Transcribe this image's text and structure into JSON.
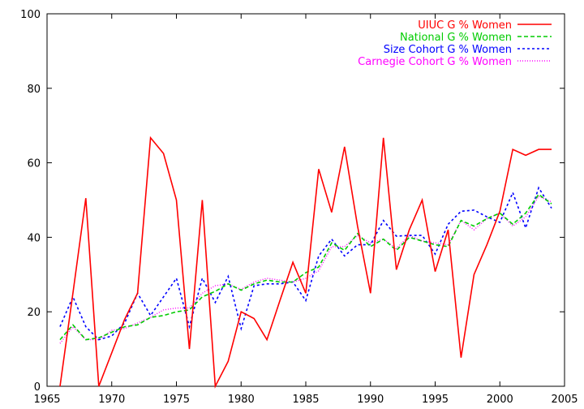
{
  "chart_data": {
    "type": "line",
    "title": "",
    "xlabel": "",
    "ylabel": "",
    "xlim": [
      1965,
      2005
    ],
    "ylim": [
      0,
      100
    ],
    "xticks": [
      1965,
      1970,
      1975,
      1980,
      1985,
      1990,
      1995,
      2000,
      2005
    ],
    "yticks": [
      0,
      20,
      40,
      60,
      80,
      100
    ],
    "grid": false,
    "legend_position": "top-right",
    "x": [
      1966,
      1967,
      1968,
      1969,
      1970,
      1971,
      1972,
      1973,
      1974,
      1975,
      1976,
      1977,
      1978,
      1979,
      1980,
      1981,
      1982,
      1983,
      1984,
      1985,
      1986,
      1987,
      1988,
      1989,
      1990,
      1991,
      1992,
      1993,
      1994,
      1995,
      1996,
      1997,
      1998,
      1999,
      2000,
      2001,
      2002,
      2003,
      2004
    ],
    "series": [
      {
        "name": "UIUC G % Women",
        "color": "#ff0000",
        "dash": "",
        "values": [
          0,
          25,
          50.5,
          0,
          9,
          18,
          25,
          66.7,
          62.5,
          50,
          10,
          50,
          0,
          6.7,
          20,
          18.2,
          12.5,
          23,
          33.3,
          25,
          58.3,
          46.7,
          64.3,
          43,
          25,
          66.7,
          31.3,
          42,
          50,
          30.8,
          42,
          7.7,
          30,
          38,
          47,
          63.6,
          62,
          63.6,
          63.6
        ]
      },
      {
        "name": "National G % Women",
        "color": "#00cc00",
        "dash": "5,3",
        "values": [
          12.5,
          16.5,
          12.5,
          13,
          14.5,
          16,
          16.5,
          18.5,
          19,
          20,
          20.5,
          24,
          25.5,
          27.5,
          25.8,
          27.5,
          28.5,
          28,
          28,
          30.5,
          32,
          38.5,
          36.5,
          41,
          37.5,
          39.5,
          36.5,
          40,
          39,
          38,
          37.5,
          44.5,
          43,
          45,
          46.5,
          43.5,
          46.5,
          51.5,
          49
        ]
      },
      {
        "name": "Size Cohort G % Women",
        "color": "#0000ff",
        "dash": "3,3",
        "values": [
          16,
          24,
          16,
          12.5,
          13.5,
          17,
          25,
          19,
          24,
          29,
          16,
          29,
          22.5,
          29.5,
          15.5,
          27,
          27.5,
          27.5,
          28,
          23,
          35,
          39.5,
          35,
          38,
          38,
          44.5,
          40.3,
          40.5,
          40.5,
          35.5,
          43.5,
          47,
          47.3,
          45.5,
          44,
          52,
          42.5,
          53.3,
          47.8
        ]
      },
      {
        "name": "Carnegie Cohort G % Women",
        "color": "#ff00ff",
        "dash": "1,2",
        "values": [
          11.5,
          16,
          12.5,
          12.5,
          15,
          15.5,
          17,
          18.5,
          20.5,
          21,
          21,
          25,
          27,
          27.5,
          26,
          28,
          29,
          28.5,
          28,
          29,
          31,
          37.5,
          37.5,
          40.5,
          38.5,
          39.5,
          37,
          40.5,
          39,
          38.5,
          38,
          44.5,
          42,
          45,
          46.5,
          43,
          45.5,
          51,
          49.5
        ]
      }
    ]
  }
}
